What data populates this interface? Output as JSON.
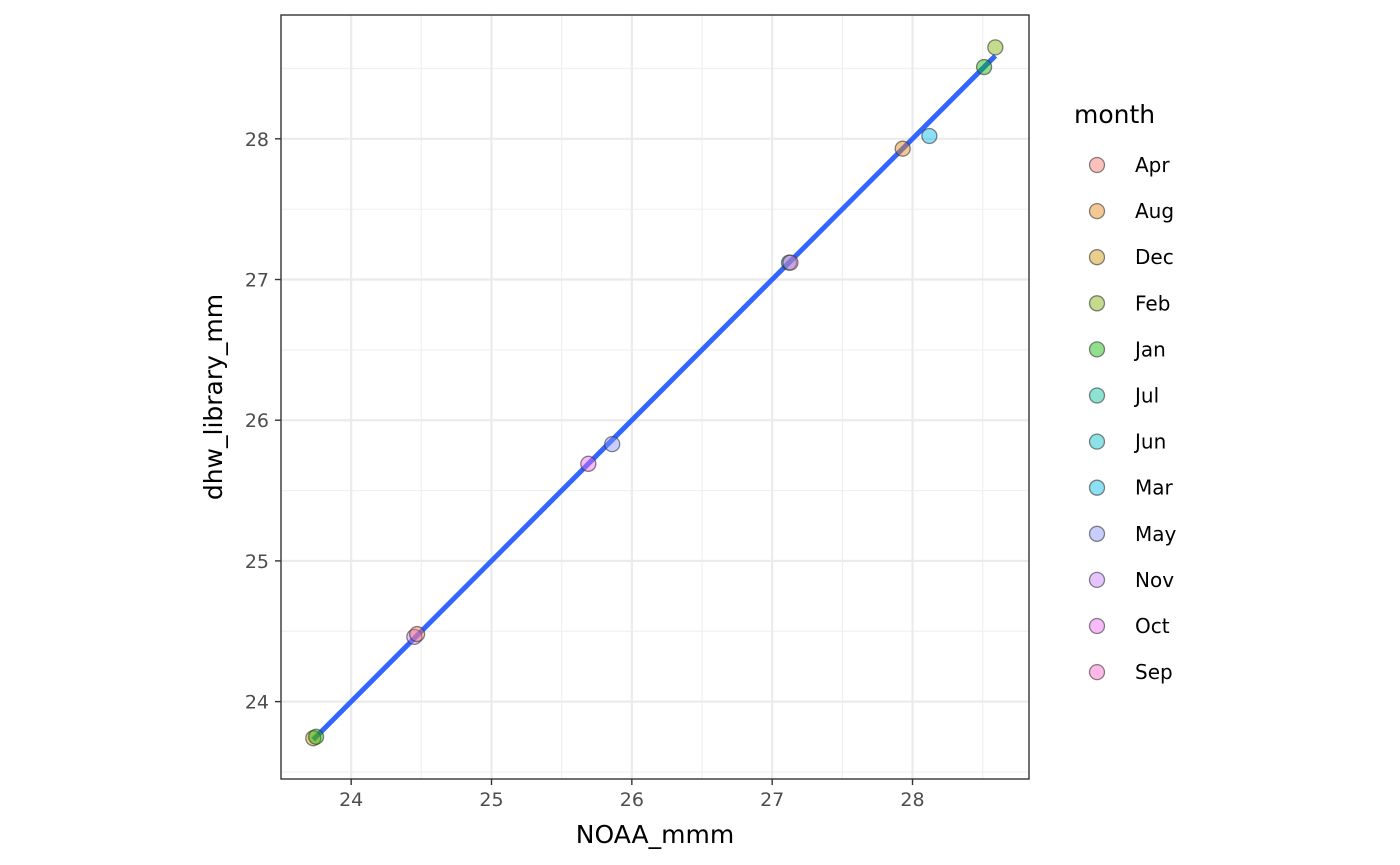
{
  "chart_data": {
    "type": "scatter",
    "xlabel": "NOAA_mmm",
    "ylabel": "dhw_library_mm",
    "xlim": [
      23.5,
      28.83
    ],
    "ylim": [
      23.45,
      28.88
    ],
    "x_ticks": [
      24,
      25,
      26,
      27,
      28
    ],
    "y_ticks": [
      24,
      25,
      26,
      27,
      28
    ],
    "grid": true,
    "legend": {
      "title": "month",
      "position": "right",
      "entries": [
        {
          "label": "Apr",
          "color": "#F8766D"
        },
        {
          "label": "Aug",
          "color": "#E68613"
        },
        {
          "label": "Dec",
          "color": "#CD9600"
        },
        {
          "label": "Feb",
          "color": "#7CAE00"
        },
        {
          "label": "Jan",
          "color": "#0CB702"
        },
        {
          "label": "Jul",
          "color": "#00C19A"
        },
        {
          "label": "Jun",
          "color": "#00BFC4"
        },
        {
          "label": "Mar",
          "color": "#00B8E7"
        },
        {
          "label": "May",
          "color": "#8494FF"
        },
        {
          "label": "Nov",
          "color": "#C77CFF"
        },
        {
          "label": "Oct",
          "color": "#ED68ED"
        },
        {
          "label": "Sep",
          "color": "#FF61CC"
        }
      ]
    },
    "points": [
      {
        "month": "Dec",
        "x": 23.73,
        "y": 23.74
      },
      {
        "month": "Jan",
        "x": 23.75,
        "y": 23.75
      },
      {
        "month": "Nov",
        "x": 24.45,
        "y": 24.46
      },
      {
        "month": "Apr",
        "x": 24.47,
        "y": 24.48
      },
      {
        "month": "Oct",
        "x": 25.69,
        "y": 25.69
      },
      {
        "month": "May",
        "x": 25.86,
        "y": 25.83
      },
      {
        "month": "Jun",
        "x": 27.12,
        "y": 27.12
      },
      {
        "month": "Sep",
        "x": 27.13,
        "y": 27.12
      },
      {
        "month": "Aug",
        "x": 27.93,
        "y": 27.93
      },
      {
        "month": "Mar",
        "x": 28.12,
        "y": 28.02
      },
      {
        "month": "Jan",
        "x": 28.51,
        "y": 28.51
      },
      {
        "month": "Feb",
        "x": 28.59,
        "y": 28.65
      }
    ],
    "trend_line": {
      "color": "#3366FF",
      "x": [
        23.73,
        28.59
      ],
      "y": [
        23.73,
        28.59
      ]
    }
  }
}
